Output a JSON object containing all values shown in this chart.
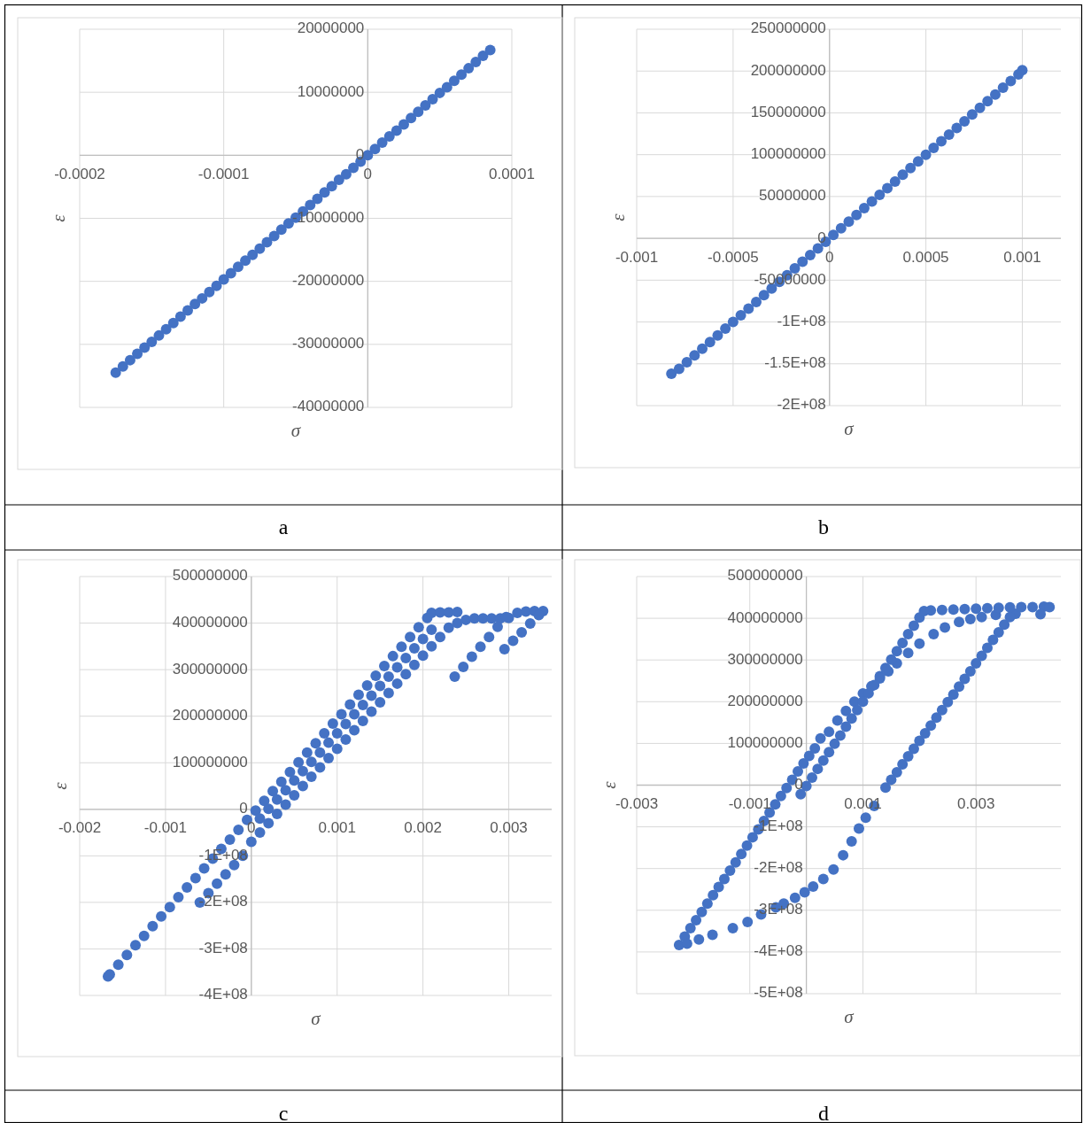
{
  "chart_data": [
    {
      "type": "scatter",
      "title": "a",
      "xlabel": "σ",
      "ylabel": "ε",
      "color": "#4472c4",
      "marker": "circle",
      "grid": true,
      "xlim": [
        -0.0002,
        0.0001
      ],
      "xticks": [
        -0.0002,
        -0.0001,
        0,
        0.0001
      ],
      "ylim": [
        -40000000,
        20000000
      ],
      "yticks": [
        -40000000,
        -30000000,
        -20000000,
        -10000000,
        0,
        10000000,
        20000000
      ],
      "x": [
        -0.000175,
        -0.00017,
        -0.000165,
        -0.00016,
        -0.000155,
        -0.00015,
        -0.000145,
        -0.00014,
        -0.000135,
        -0.00013,
        -0.000125,
        -0.00012,
        -0.000115,
        -0.00011,
        -0.000105,
        -0.0001,
        -9.5e-05,
        -9e-05,
        -8.5e-05,
        -8e-05,
        -7.5e-05,
        -7e-05,
        -6.5e-05,
        -6e-05,
        -5.5e-05,
        -5e-05,
        -4.5e-05,
        -4e-05,
        -3.5e-05,
        -3e-05,
        -2.5e-05,
        -2e-05,
        -1.5e-05,
        -1e-05,
        -5e-06,
        0,
        5e-06,
        1e-05,
        1.5e-05,
        2e-05,
        2.5e-05,
        3e-05,
        3.5e-05,
        4e-05,
        4.5e-05,
        5e-05,
        5.5e-05,
        6e-05,
        6.5e-05,
        7e-05,
        7.5e-05,
        8e-05,
        8.5e-05
      ],
      "values": [
        -34500000,
        -33500000,
        -32500000,
        -31500000,
        -30500000,
        -29600000,
        -28600000,
        -27600000,
        -26600000,
        -25600000,
        -24600000,
        -23600000,
        -22700000,
        -21700000,
        -20700000,
        -19700000,
        -18700000,
        -17700000,
        -16700000,
        -15800000,
        -14800000,
        -13800000,
        -12800000,
        -11800000,
        -10800000,
        -9900000,
        -8900000,
        -7900000,
        -6900000,
        -5900000,
        -4900000,
        -3900000,
        -3000000,
        -2000000,
        -1000000,
        0,
        1000000,
        2000000,
        3000000,
        3900000,
        4900000,
        5900000,
        6900000,
        7900000,
        8900000,
        9900000,
        10800000,
        11800000,
        12800000,
        13800000,
        14800000,
        15800000,
        16700000
      ]
    },
    {
      "type": "scatter",
      "title": "b",
      "xlabel": "σ",
      "ylabel": "ε",
      "color": "#4472c4",
      "marker": "circle",
      "grid": true,
      "xlim": [
        -0.001,
        0.0012
      ],
      "xticks": [
        -0.001,
        -0.0005,
        0,
        0.0005,
        0.001
      ],
      "ylim": [
        -200000000,
        250000000
      ],
      "yticks": [
        {
          "value": -200000000,
          "label": "-2E+08"
        },
        {
          "value": -150000000,
          "label": "-1.5E+08"
        },
        {
          "value": -100000000,
          "label": "-1E+08"
        },
        -50000000,
        0,
        50000000,
        100000000,
        150000000,
        200000000,
        250000000
      ],
      "x": [
        -0.00082,
        -0.00078,
        -0.00074,
        -0.0007,
        -0.00066,
        -0.00062,
        -0.00058,
        -0.00054,
        -0.0005,
        -0.00046,
        -0.00042,
        -0.00038,
        -0.00034,
        -0.0003,
        -0.00026,
        -0.00022,
        -0.00018,
        -0.00014,
        -0.0001,
        -6e-05,
        -2e-05,
        2e-05,
        6e-05,
        0.0001,
        0.00014,
        0.00018,
        0.00022,
        0.00026,
        0.0003,
        0.00034,
        0.00038,
        0.00042,
        0.00046,
        0.0005,
        0.00054,
        0.00058,
        0.00062,
        0.00066,
        0.0007,
        0.00074,
        0.00078,
        0.00082,
        0.00086,
        0.0009,
        0.00094,
        0.00098,
        0.001
      ],
      "values": [
        -162000000,
        -156000000,
        -148000000,
        -140000000,
        -132000000,
        -124000000,
        -116000000,
        -108000000,
        -100000000,
        -92000000,
        -84000000,
        -76000000,
        -68000000,
        -60000000,
        -52000000,
        -44000000,
        -36000000,
        -28000000,
        -20000000,
        -12000000,
        -4000000,
        4000000,
        12000000,
        20000000,
        28000000,
        36000000,
        44000000,
        52000000,
        60000000,
        68000000,
        76000000,
        84000000,
        92000000,
        100000000,
        108000000,
        116000000,
        124000000,
        132000000,
        140000000,
        148000000,
        156000000,
        164000000,
        172000000,
        180000000,
        188000000,
        196000000,
        201000000
      ]
    },
    {
      "type": "scatter",
      "title": "c",
      "xlabel": "σ",
      "ylabel": "ε",
      "color": "#4472c4",
      "marker": "circle",
      "grid": true,
      "xlim": [
        -0.002,
        0.0035
      ],
      "xticks": [
        -0.002,
        -0.001,
        0,
        0.001,
        0.002,
        0.003
      ],
      "ylim": [
        -400000000,
        500000000
      ],
      "yticks": [
        {
          "value": -400000000,
          "label": "-4E+08"
        },
        {
          "value": -300000000,
          "label": "-3E+08"
        },
        {
          "value": -200000000,
          "label": "-2E+08"
        },
        {
          "value": -100000000,
          "label": "-1E+08"
        },
        0,
        100000000,
        200000000,
        300000000,
        400000000,
        500000000
      ],
      "x": [
        -0.00167,
        -0.00165,
        -0.00155,
        -0.00145,
        -0.00135,
        -0.00125,
        -0.00115,
        -0.00105,
        -0.00095,
        -0.00085,
        -0.00075,
        -0.00065,
        -0.00055,
        -0.00045,
        -0.00035,
        -0.00025,
        -0.00015,
        -5e-05,
        5e-05,
        0.00015,
        0.00025,
        0.00035,
        0.00045,
        0.00055,
        0.00065,
        0.00075,
        0.00085,
        0.00095,
        0.00105,
        0.00115,
        0.00125,
        0.00135,
        0.00145,
        0.00155,
        0.00165,
        0.00175,
        0.00185,
        0.00195,
        0.00205,
        0.0021,
        0.0022,
        0.0023,
        0.0024,
        0,
        0.0001,
        0.0002,
        0.0003,
        0.0004,
        0.0005,
        0.0006,
        0.0007,
        0.0008,
        0.0009,
        0.001,
        0.0011,
        0.0012,
        0.0013,
        0.0014,
        0.0015,
        0.0016,
        0.0017,
        0.0018,
        0.0019,
        0.002,
        0.0021,
        0.0022,
        0.0023,
        0.0024,
        0.0025,
        0.0026,
        0.0027,
        0.0028,
        0.0029,
        0.003,
        0.0001,
        0.0002,
        0.0003,
        0.0004,
        0.0005,
        0.0006,
        0.0007,
        0.0008,
        0.0009,
        0.001,
        0.0011,
        0.0012,
        0.0013,
        0.0014,
        0.0015,
        0.0016,
        0.0017,
        0.0018,
        0.0019,
        0.002,
        0.0021,
        -0.0006,
        -0.0005,
        -0.0004,
        -0.0003,
        -0.0002,
        -0.0001,
        0.00237,
        0.00247,
        0.00257,
        0.00267,
        0.00277,
        0.00287,
        0.00297,
        0.0031,
        0.0032,
        0.0033,
        0.0034,
        0.00295,
        0.00305,
        0.00315,
        0.00325,
        0.00335
      ],
      "values": [
        -359000000,
        -355000000,
        -334000000,
        -313000000,
        -292000000,
        -272000000,
        -251000000,
        -230000000,
        -210000000,
        -189000000,
        -168000000,
        -148000000,
        -127000000,
        -106000000,
        -85000000,
        -65000000,
        -44000000,
        -23000000,
        -3000000,
        18000000,
        39000000,
        59000000,
        80000000,
        101000000,
        122000000,
        142000000,
        163000000,
        184000000,
        204000000,
        225000000,
        246000000,
        266000000,
        287000000,
        308000000,
        329000000,
        349000000,
        370000000,
        391000000,
        411000000,
        422000000,
        423000000,
        423000000,
        424000000,
        -70000000,
        -50000000,
        -30000000,
        -10000000,
        10000000,
        30000000,
        50000000,
        70000000,
        90000000,
        110000000,
        130000000,
        150000000,
        170000000,
        190000000,
        210000000,
        230000000,
        250000000,
        270000000,
        290000000,
        310000000,
        330000000,
        350000000,
        370000000,
        390000000,
        400000000,
        407000000,
        410000000,
        410000000,
        410000000,
        410000000,
        411000000,
        -20000000,
        1000000,
        21000000,
        41000000,
        62000000,
        82000000,
        102000000,
        122000000,
        143000000,
        163000000,
        183000000,
        204000000,
        224000000,
        244000000,
        265000000,
        285000000,
        305000000,
        325000000,
        346000000,
        366000000,
        386000000,
        -200000000,
        -180000000,
        -160000000,
        -140000000,
        -120000000,
        -100000000,
        285000000,
        306000000,
        328000000,
        349000000,
        370000000,
        392000000,
        413000000,
        422000000,
        425000000,
        426000000,
        426000000,
        344000000,
        362000000,
        380000000,
        399000000,
        417000000
      ]
    },
    {
      "type": "scatter",
      "title": "d",
      "xlabel": "σ",
      "ylabel": "ε",
      "color": "#4472c4",
      "marker": "circle",
      "grid": true,
      "xlim": [
        -0.003,
        0.0045
      ],
      "xticks": [
        -0.003,
        -0.001,
        0.001,
        0.003
      ],
      "ylim": [
        -500000000,
        500000000
      ],
      "yticks": [
        {
          "value": -500000000,
          "label": "-5E+08"
        },
        {
          "value": -400000000,
          "label": "-4E+08"
        },
        {
          "value": -300000000,
          "label": "-3E+08"
        },
        {
          "value": -200000000,
          "label": "-2E+08"
        },
        {
          "value": -100000000,
          "label": "-1E+08"
        },
        0,
        100000000,
        200000000,
        300000000,
        400000000,
        500000000
      ],
      "x": [
        -0.00225,
        -0.00215,
        -0.00205,
        -0.00195,
        -0.00185,
        -0.00175,
        -0.00165,
        -0.00155,
        -0.00145,
        -0.00135,
        -0.00125,
        -0.00115,
        -0.00105,
        -0.00095,
        -0.00085,
        -0.00075,
        -0.00065,
        -0.00055,
        -0.00045,
        -0.00035,
        -0.00025,
        -0.00015,
        -5e-05,
        5e-05,
        0.00015,
        0.00025,
        0.0004,
        0.00055,
        0.0007,
        0.00085,
        0.001,
        0.00115,
        0.0013,
        0.00145,
        0.0016,
        0.0018,
        0.002,
        0.00225,
        0.00245,
        0.0027,
        0.0029,
        0.0031,
        0.00335,
        0.0037,
        -0.0001,
        0,
        0.0001,
        0.0002,
        0.0003,
        0.0004,
        0.0005,
        0.0006,
        0.0007,
        0.0008,
        0.0009,
        0.001,
        0.0011,
        0.0012,
        0.0013,
        0.0014,
        0.0015,
        0.0016,
        0.0017,
        0.0018,
        0.0019,
        0.002,
        0.00208,
        0.0022,
        0.0024,
        0.0026,
        0.0028,
        0.003,
        0.0032,
        0.0034,
        0.0036,
        0.0038,
        0.004,
        0.0042,
        0.0043,
        0.00414,
        0.0036,
        0.0035,
        0.0034,
        0.0033,
        0.0032,
        0.0031,
        0.003,
        0.0029,
        0.0028,
        0.0027,
        0.0026,
        0.0025,
        0.0024,
        0.0023,
        0.0022,
        0.0021,
        0.002,
        0.0019,
        0.0018,
        0.0017,
        0.0016,
        0.0015,
        0.0014,
        0.0012,
        0.00105,
        0.00093,
        0.0008,
        0.00065,
        0.00048,
        0.0003,
        0.00012,
        -3e-05,
        -0.0002,
        -0.0004,
        -0.00054,
        -0.0008,
        -0.00104,
        -0.0013,
        -0.00166,
        -0.0019,
        -0.00211
      ],
      "values": [
        -383000000,
        -363000000,
        -343000000,
        -324000000,
        -304000000,
        -284000000,
        -264000000,
        -244000000,
        -225000000,
        -205000000,
        -185000000,
        -165000000,
        -145000000,
        -125000000,
        -106000000,
        -86000000,
        -66000000,
        -46000000,
        -26000000,
        -7000000,
        13000000,
        33000000,
        52000000,
        70000000,
        88000000,
        112000000,
        128000000,
        155000000,
        178000000,
        200000000,
        220000000,
        237000000,
        256000000,
        273000000,
        292000000,
        317000000,
        339000000,
        362000000,
        378000000,
        391000000,
        398000000,
        403000000,
        408000000,
        411000000,
        -22000000,
        -2000000,
        18000000,
        39000000,
        59000000,
        79000000,
        99000000,
        119000000,
        140000000,
        160000000,
        180000000,
        200000000,
        220000000,
        240000000,
        261000000,
        281000000,
        301000000,
        321000000,
        341000000,
        362000000,
        382000000,
        402000000,
        417000000,
        419000000,
        420000000,
        421000000,
        422000000,
        423000000,
        424000000,
        425000000,
        426000000,
        427000000,
        427000000,
        428000000,
        427000000,
        410000000,
        403000000,
        385000000,
        366000000,
        348000000,
        329000000,
        310000000,
        292000000,
        273000000,
        255000000,
        236000000,
        217000000,
        199000000,
        180000000,
        162000000,
        143000000,
        124000000,
        106000000,
        87000000,
        69000000,
        50000000,
        31000000,
        13000000,
        -6000000,
        -50000000,
        -78000000,
        -104000000,
        -135000000,
        -168000000,
        -202000000,
        -225000000,
        -243000000,
        -257000000,
        -270000000,
        -284000000,
        -293000000,
        -310000000,
        -328000000,
        -343000000,
        -359000000,
        -370000000,
        -380000000
      ]
    }
  ]
}
